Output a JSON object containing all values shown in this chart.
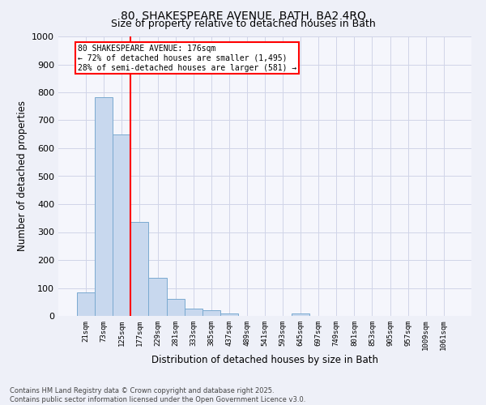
{
  "title_line1": "80, SHAKESPEARE AVENUE, BATH, BA2 4RQ",
  "title_line2": "Size of property relative to detached houses in Bath",
  "xlabel": "Distribution of detached houses by size in Bath",
  "ylabel": "Number of detached properties",
  "bar_labels": [
    "21sqm",
    "73sqm",
    "125sqm",
    "177sqm",
    "229sqm",
    "281sqm",
    "333sqm",
    "385sqm",
    "437sqm",
    "489sqm",
    "541sqm",
    "593sqm",
    "645sqm",
    "697sqm",
    "749sqm",
    "801sqm",
    "853sqm",
    "905sqm",
    "957sqm",
    "1009sqm",
    "1061sqm"
  ],
  "bar_values": [
    83,
    783,
    650,
    335,
    135,
    60,
    25,
    20,
    10,
    0,
    0,
    0,
    10,
    0,
    0,
    0,
    0,
    0,
    0,
    0,
    0
  ],
  "bar_color": "#c8d8ee",
  "bar_edge_color": "#7aaad0",
  "vline_x": 2.5,
  "vline_color": "red",
  "ylim": [
    0,
    1000
  ],
  "yticks": [
    0,
    100,
    200,
    300,
    400,
    500,
    600,
    700,
    800,
    900,
    1000
  ],
  "annotation_text": "80 SHAKESPEARE AVENUE: 176sqm\n← 72% of detached houses are smaller (1,495)\n28% of semi-detached houses are larger (581) →",
  "annotation_box_color": "red",
  "footer_line1": "Contains HM Land Registry data © Crown copyright and database right 2025.",
  "footer_line2": "Contains public sector information licensed under the Open Government Licence v3.0.",
  "bg_color": "#eef0f8",
  "plot_bg_color": "#f5f6fc",
  "grid_color": "#d0d4e8"
}
